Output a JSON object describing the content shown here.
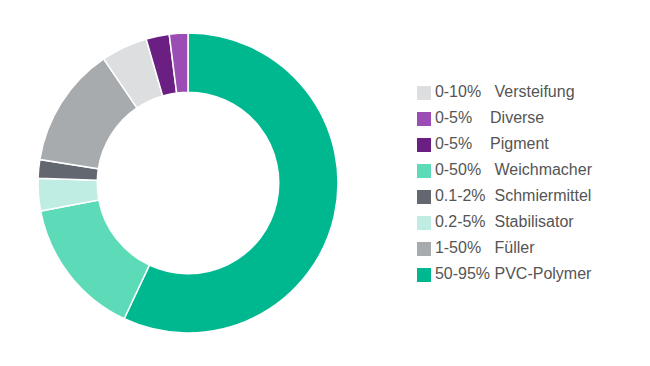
{
  "chart_data": {
    "type": "pie",
    "categories": [
      "50-95% PVC-Polymer",
      "0-50%   Weichmacher",
      "0.2-5%  Stabilisator",
      "0.1-2%  Schmiermittel",
      "1-50%   Füller",
      "0-10%   Versteifung",
      "0-5%    Pigment",
      "0-5%    Diverse"
    ],
    "values": [
      57,
      15,
      3.5,
      2,
      13,
      5,
      2.5,
      2
    ],
    "colors": [
      "#00B890",
      "#5DDBB8",
      "#C0EDE3",
      "#636870",
      "#A8ABAE",
      "#DCDEE0",
      "#6B1F82",
      "#9B4DB5"
    ],
    "legend": "right"
  }
}
